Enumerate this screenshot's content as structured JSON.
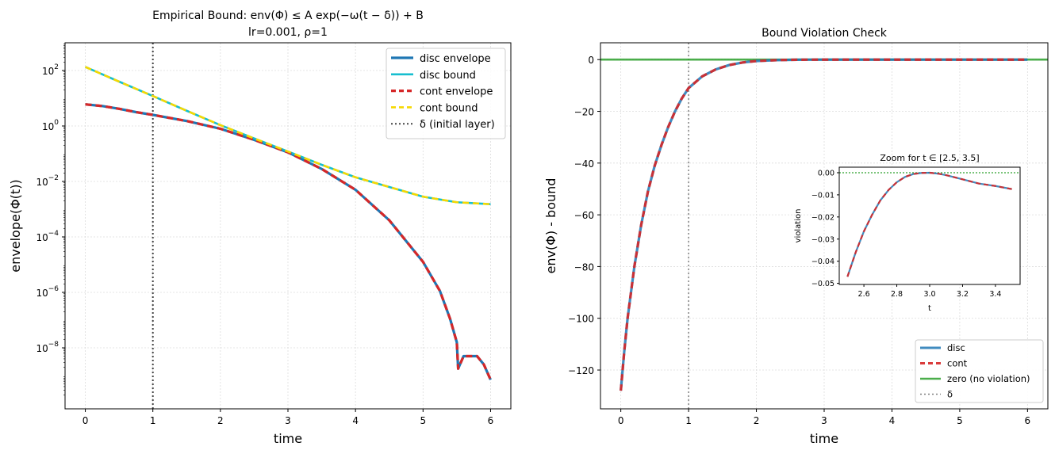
{
  "colors": {
    "disc": "#1f77b4",
    "disc_bound": "#17becf",
    "cont": "#d62728",
    "cont_bound": "#f5d800",
    "zero": "#2ca02c",
    "delta": "#444444",
    "grid": "#dcdcdc"
  },
  "chart_data": [
    {
      "type": "line",
      "title": "Empirical Bound: env(Φ) ≤ A exp(−ω(t − δ)) + B",
      "subtitle": "lr=0.001, ρ=1",
      "xlabel": "time",
      "ylabel": "envelope(Φ(t))",
      "yscale": "log",
      "xlim": [
        -0.3,
        6.3
      ],
      "ylim_log10": [
        -10.2,
        3.0
      ],
      "xticks": [
        0,
        1,
        2,
        3,
        4,
        5,
        6
      ],
      "xtick_labels": [
        "0",
        "1",
        "2",
        "3",
        "4",
        "5",
        "6"
      ],
      "yticks_log10": [
        2,
        0,
        -2,
        -4,
        -6,
        -8
      ],
      "ytick_labels": [
        {
          "base": "10",
          "exp": "2"
        },
        {
          "base": "10",
          "exp": "0"
        },
        {
          "base": "10",
          "exp": "−2"
        },
        {
          "base": "10",
          "exp": "−4"
        },
        {
          "base": "10",
          "exp": "−6"
        },
        {
          "base": "10",
          "exp": "−8"
        }
      ],
      "delta_x": 1,
      "grid": true,
      "legend_position": "top-right",
      "legend": [
        "disc envelope",
        "disc bound",
        "cont envelope",
        "cont bound",
        "δ (initial layer)"
      ],
      "series": [
        {
          "name": "disc envelope",
          "x": [
            0,
            0.25,
            0.5,
            0.75,
            1,
            1.5,
            2,
            2.5,
            3,
            3.5,
            4,
            4.5,
            5,
            5.25,
            5.4,
            5.5,
            5.52,
            5.6,
            5.8,
            5.9,
            6.0
          ],
          "log10": [
            0.78,
            0.72,
            0.62,
            0.5,
            0.4,
            0.18,
            -0.1,
            -0.5,
            -0.95,
            -1.55,
            -2.3,
            -3.4,
            -4.9,
            -5.95,
            -6.95,
            -7.8,
            -8.75,
            -8.3,
            -8.3,
            -8.6,
            -9.15
          ]
        },
        {
          "name": "disc bound",
          "x": [
            0,
            0.5,
            1,
            1.5,
            2,
            2.5,
            3,
            3.5,
            4,
            4.5,
            5,
            5.5,
            6
          ],
          "log10": [
            2.13,
            1.6,
            1.08,
            0.55,
            0.03,
            -0.45,
            -0.92,
            -1.4,
            -1.85,
            -2.2,
            -2.55,
            -2.75,
            -2.82
          ]
        },
        {
          "name": "cont envelope",
          "x": [
            0,
            0.25,
            0.5,
            0.75,
            1,
            1.5,
            2,
            2.5,
            3,
            3.5,
            4,
            4.5,
            5,
            5.25,
            5.4,
            5.5,
            5.52,
            5.6,
            5.8,
            5.9,
            6.0
          ],
          "log10": [
            0.78,
            0.72,
            0.62,
            0.5,
            0.4,
            0.18,
            -0.1,
            -0.5,
            -0.95,
            -1.55,
            -2.3,
            -3.4,
            -4.9,
            -5.95,
            -6.95,
            -7.8,
            -8.75,
            -8.3,
            -8.3,
            -8.6,
            -9.15
          ]
        },
        {
          "name": "cont bound",
          "x": [
            0,
            0.5,
            1,
            1.5,
            2,
            2.5,
            3,
            3.5,
            4,
            4.5,
            5,
            5.5,
            6
          ],
          "log10": [
            2.13,
            1.6,
            1.08,
            0.55,
            0.03,
            -0.45,
            -0.92,
            -1.4,
            -1.85,
            -2.2,
            -2.55,
            -2.75,
            -2.82
          ]
        }
      ]
    },
    {
      "type": "line",
      "title": "Bound Violation Check",
      "xlabel": "time",
      "ylabel": "env(Φ) - bound",
      "xlim": [
        -0.3,
        6.3
      ],
      "ylim": [
        -135,
        6.5
      ],
      "xticks": [
        0,
        1,
        2,
        3,
        4,
        5,
        6
      ],
      "xtick_labels": [
        "0",
        "1",
        "2",
        "3",
        "4",
        "5",
        "6"
      ],
      "yticks": [
        0,
        -20,
        -40,
        -60,
        -80,
        -100,
        -120
      ],
      "ytick_labels": [
        "0",
        "−20",
        "−40",
        "−60",
        "−80",
        "−100",
        "−120"
      ],
      "delta_x": 1,
      "zero_line": 0,
      "grid": true,
      "legend_position": "lower-right",
      "legend": [
        "disc",
        "cont",
        "zero (no violation)",
        "δ"
      ],
      "series": [
        {
          "name": "disc",
          "x": [
            0,
            0.05,
            0.1,
            0.2,
            0.3,
            0.4,
            0.5,
            0.6,
            0.7,
            0.8,
            0.9,
            1.0,
            1.2,
            1.4,
            1.6,
            1.8,
            2.0,
            2.3,
            2.6,
            3.0,
            4.0,
            5.0,
            6.0
          ],
          "y": [
            -128,
            -113,
            -100,
            -80,
            -64,
            -51,
            -41,
            -33,
            -26,
            -20,
            -15,
            -11,
            -6.5,
            -3.8,
            -2.1,
            -1.1,
            -0.55,
            -0.2,
            -0.05,
            0,
            -0.003,
            -0.004,
            -0.005
          ]
        },
        {
          "name": "cont",
          "x": [
            0,
            0.05,
            0.1,
            0.2,
            0.3,
            0.4,
            0.5,
            0.6,
            0.7,
            0.8,
            0.9,
            1.0,
            1.2,
            1.4,
            1.6,
            1.8,
            2.0,
            2.3,
            2.6,
            3.0,
            4.0,
            5.0,
            6.0
          ],
          "y": [
            -128,
            -113,
            -100,
            -80,
            -64,
            -51,
            -41,
            -33,
            -26,
            -20,
            -15,
            -11,
            -6.5,
            -3.8,
            -2.1,
            -1.1,
            -0.55,
            -0.2,
            -0.05,
            0,
            -0.003,
            -0.004,
            -0.005
          ]
        }
      ]
    },
    {
      "type": "line",
      "title": "Zoom for t ∈ [2.5, 3.5]",
      "xlabel": "t",
      "ylabel": "violation",
      "xlim": [
        2.45,
        3.55
      ],
      "ylim": [
        -0.0505,
        0.0025
      ],
      "xticks": [
        2.6,
        2.8,
        3.0,
        3.2,
        3.4
      ],
      "xtick_labels": [
        "2.6",
        "2.8",
        "3.0",
        "3.2",
        "3.4"
      ],
      "yticks": [
        0,
        -0.01,
        -0.02,
        -0.03,
        -0.04,
        -0.05
      ],
      "ytick_labels": [
        "0.00",
        "−0.01",
        "−0.02",
        "−0.03",
        "−0.04",
        "−0.05"
      ],
      "zero_line": 0,
      "series": [
        {
          "name": "disc",
          "x": [
            2.5,
            2.55,
            2.6,
            2.65,
            2.7,
            2.75,
            2.8,
            2.85,
            2.9,
            2.95,
            3.0,
            3.05,
            3.1,
            3.2,
            3.3,
            3.4,
            3.5
          ],
          "y": [
            -0.047,
            -0.036,
            -0.0265,
            -0.019,
            -0.0125,
            -0.0078,
            -0.0043,
            -0.0019,
            -0.0006,
            -0.0001,
            0.0,
            -0.0004,
            -0.0011,
            -0.003,
            -0.0049,
            -0.006,
            -0.0074
          ]
        },
        {
          "name": "cont",
          "x": [
            2.5,
            2.55,
            2.6,
            2.65,
            2.7,
            2.75,
            2.8,
            2.85,
            2.9,
            2.95,
            3.0,
            3.05,
            3.1,
            3.2,
            3.3,
            3.4,
            3.5
          ],
          "y": [
            -0.047,
            -0.036,
            -0.0265,
            -0.019,
            -0.0125,
            -0.0078,
            -0.0043,
            -0.0019,
            -0.0006,
            -0.0001,
            0.0,
            -0.0004,
            -0.0011,
            -0.003,
            -0.0049,
            -0.006,
            -0.0074
          ]
        }
      ]
    }
  ]
}
